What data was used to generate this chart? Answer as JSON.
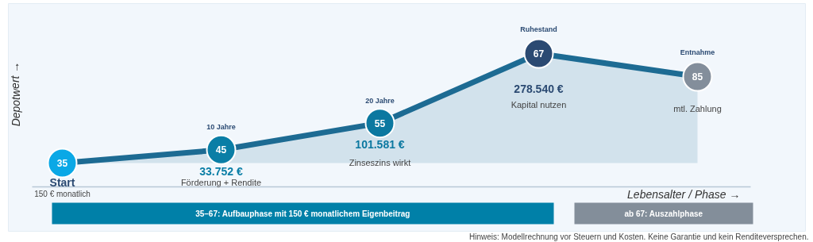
{
  "chart_data": {
    "type": "area",
    "xlabel": "Lebensalter / Phase →",
    "ylabel": "Depotwert →",
    "categories": [
      "35",
      "45",
      "55",
      "67",
      "85"
    ],
    "series": [
      {
        "color": "#1d6b93",
        "colors": [
          "#0aa8e6",
          "#0a7ea6",
          "#0b78a0",
          "#2b4a72",
          "#838e9b"
        ],
        "values": [
          0,
          33752,
          101581,
          278540,
          220000
        ],
        "value_labels": [
          null,
          "33.752 €",
          "101.581 €",
          "278.540 €",
          null
        ]
      }
    ],
    "marker": "circle",
    "annotations": [
      "Start",
      "150 € monatlich",
      "10 Jahre",
      "Förderung + Rendite",
      "20 Jahre",
      "Zinseszins wirkt",
      "Ruhestand",
      "Kapital nutzen",
      "Entnahme",
      "mtl. Zahlung",
      "35–67: Aufbauphase mit 150 € monatlichem Eigenbeitrag",
      "ab 67: Auszahlphase",
      "Hinweis: Modellrechnung vor Steuern und Kosten. Keine Garantie und kein Renditeversprechen."
    ]
  }
}
